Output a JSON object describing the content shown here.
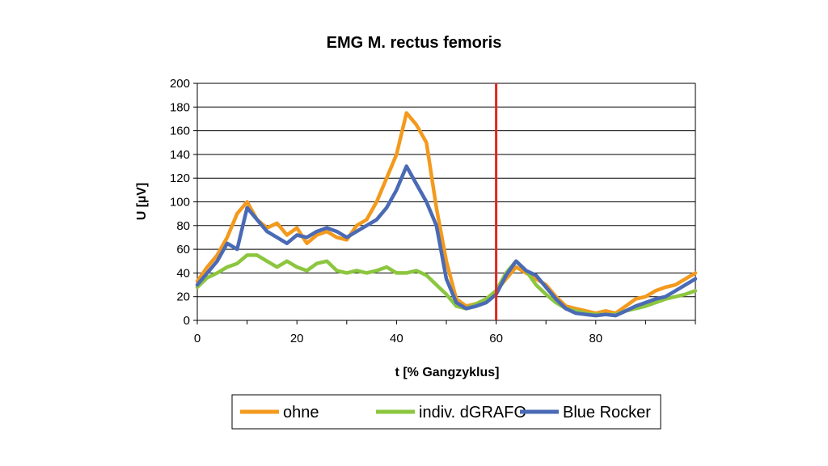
{
  "chart_data": {
    "type": "line",
    "title": "EMG M. rectus femoris",
    "xlabel": "t [% Gangzyklus]",
    "ylabel": "U [µV]",
    "xlim": [
      0,
      100
    ],
    "ylim": [
      0,
      200
    ],
    "x_ticks": [
      0,
      20,
      40,
      60,
      80
    ],
    "y_ticks": [
      0,
      20,
      40,
      60,
      80,
      100,
      120,
      140,
      160,
      180,
      200
    ],
    "grid": "horizontal",
    "legend_position": "bottom",
    "marker_line": {
      "x": 60,
      "color": "#e3261f"
    },
    "x": [
      0,
      2,
      4,
      6,
      8,
      10,
      12,
      14,
      16,
      18,
      20,
      22,
      24,
      26,
      28,
      30,
      32,
      34,
      36,
      38,
      40,
      42,
      44,
      46,
      48,
      50,
      52,
      54,
      56,
      58,
      60,
      62,
      64,
      66,
      68,
      70,
      72,
      74,
      76,
      78,
      80,
      82,
      84,
      86,
      88,
      90,
      92,
      94,
      96,
      98,
      100
    ],
    "series": [
      {
        "name": "ohne",
        "color": "#f39a1e",
        "values": [
          33,
          45,
          55,
          70,
          90,
          100,
          85,
          78,
          82,
          72,
          78,
          65,
          72,
          75,
          70,
          68,
          80,
          85,
          100,
          120,
          140,
          175,
          165,
          150,
          95,
          50,
          18,
          12,
          14,
          18,
          25,
          35,
          45,
          40,
          35,
          30,
          20,
          12,
          10,
          8,
          6,
          8,
          6,
          12,
          18,
          20,
          25,
          28,
          30,
          35,
          40
        ]
      },
      {
        "name": "indiv. dGRAFO",
        "color": "#8cc63f",
        "values": [
          28,
          36,
          40,
          45,
          48,
          55,
          55,
          50,
          45,
          50,
          45,
          42,
          48,
          50,
          42,
          40,
          42,
          40,
          42,
          45,
          40,
          40,
          42,
          38,
          30,
          22,
          12,
          10,
          14,
          18,
          25,
          40,
          50,
          42,
          30,
          22,
          15,
          10,
          8,
          6,
          5,
          5,
          5,
          8,
          10,
          12,
          15,
          18,
          20,
          22,
          25
        ]
      },
      {
        "name": "Blue Rocker",
        "color": "#4a6ab5",
        "values": [
          30,
          40,
          50,
          65,
          60,
          95,
          85,
          75,
          70,
          65,
          72,
          70,
          75,
          78,
          75,
          70,
          75,
          80,
          85,
          95,
          110,
          130,
          115,
          100,
          80,
          35,
          15,
          10,
          12,
          15,
          22,
          38,
          50,
          42,
          38,
          28,
          18,
          10,
          6,
          5,
          4,
          5,
          4,
          8,
          12,
          15,
          18,
          20,
          25,
          30,
          35
        ]
      }
    ]
  }
}
